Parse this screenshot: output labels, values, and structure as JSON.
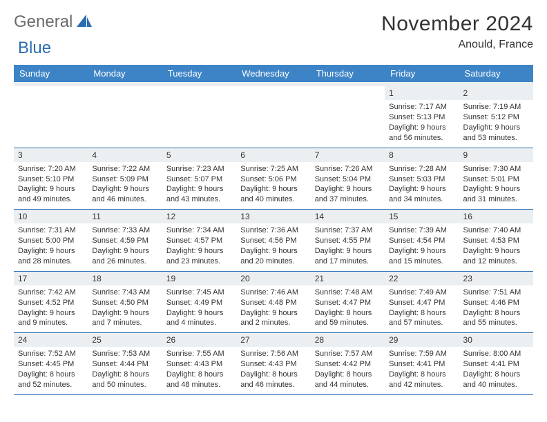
{
  "logo": {
    "word1": "General",
    "word2": "Blue",
    "sail_color": "#2a6db0"
  },
  "header": {
    "title": "November 2024",
    "location": "Anould, France"
  },
  "colors": {
    "header_bg": "#3d84c6",
    "header_text": "#ffffff",
    "row_divider": "#2a6db0",
    "daynum_bg": "#eceff1",
    "text": "#333333",
    "page_bg": "#ffffff"
  },
  "day_names": [
    "Sunday",
    "Monday",
    "Tuesday",
    "Wednesday",
    "Thursday",
    "Friday",
    "Saturday"
  ],
  "weeks": [
    [
      null,
      null,
      null,
      null,
      null,
      {
        "n": "1",
        "sr": "Sunrise: 7:17 AM",
        "ss": "Sunset: 5:13 PM",
        "d1": "Daylight: 9 hours",
        "d2": "and 56 minutes."
      },
      {
        "n": "2",
        "sr": "Sunrise: 7:19 AM",
        "ss": "Sunset: 5:12 PM",
        "d1": "Daylight: 9 hours",
        "d2": "and 53 minutes."
      }
    ],
    [
      {
        "n": "3",
        "sr": "Sunrise: 7:20 AM",
        "ss": "Sunset: 5:10 PM",
        "d1": "Daylight: 9 hours",
        "d2": "and 49 minutes."
      },
      {
        "n": "4",
        "sr": "Sunrise: 7:22 AM",
        "ss": "Sunset: 5:09 PM",
        "d1": "Daylight: 9 hours",
        "d2": "and 46 minutes."
      },
      {
        "n": "5",
        "sr": "Sunrise: 7:23 AM",
        "ss": "Sunset: 5:07 PM",
        "d1": "Daylight: 9 hours",
        "d2": "and 43 minutes."
      },
      {
        "n": "6",
        "sr": "Sunrise: 7:25 AM",
        "ss": "Sunset: 5:06 PM",
        "d1": "Daylight: 9 hours",
        "d2": "and 40 minutes."
      },
      {
        "n": "7",
        "sr": "Sunrise: 7:26 AM",
        "ss": "Sunset: 5:04 PM",
        "d1": "Daylight: 9 hours",
        "d2": "and 37 minutes."
      },
      {
        "n": "8",
        "sr": "Sunrise: 7:28 AM",
        "ss": "Sunset: 5:03 PM",
        "d1": "Daylight: 9 hours",
        "d2": "and 34 minutes."
      },
      {
        "n": "9",
        "sr": "Sunrise: 7:30 AM",
        "ss": "Sunset: 5:01 PM",
        "d1": "Daylight: 9 hours",
        "d2": "and 31 minutes."
      }
    ],
    [
      {
        "n": "10",
        "sr": "Sunrise: 7:31 AM",
        "ss": "Sunset: 5:00 PM",
        "d1": "Daylight: 9 hours",
        "d2": "and 28 minutes."
      },
      {
        "n": "11",
        "sr": "Sunrise: 7:33 AM",
        "ss": "Sunset: 4:59 PM",
        "d1": "Daylight: 9 hours",
        "d2": "and 26 minutes."
      },
      {
        "n": "12",
        "sr": "Sunrise: 7:34 AM",
        "ss": "Sunset: 4:57 PM",
        "d1": "Daylight: 9 hours",
        "d2": "and 23 minutes."
      },
      {
        "n": "13",
        "sr": "Sunrise: 7:36 AM",
        "ss": "Sunset: 4:56 PM",
        "d1": "Daylight: 9 hours",
        "d2": "and 20 minutes."
      },
      {
        "n": "14",
        "sr": "Sunrise: 7:37 AM",
        "ss": "Sunset: 4:55 PM",
        "d1": "Daylight: 9 hours",
        "d2": "and 17 minutes."
      },
      {
        "n": "15",
        "sr": "Sunrise: 7:39 AM",
        "ss": "Sunset: 4:54 PM",
        "d1": "Daylight: 9 hours",
        "d2": "and 15 minutes."
      },
      {
        "n": "16",
        "sr": "Sunrise: 7:40 AM",
        "ss": "Sunset: 4:53 PM",
        "d1": "Daylight: 9 hours",
        "d2": "and 12 minutes."
      }
    ],
    [
      {
        "n": "17",
        "sr": "Sunrise: 7:42 AM",
        "ss": "Sunset: 4:52 PM",
        "d1": "Daylight: 9 hours",
        "d2": "and 9 minutes."
      },
      {
        "n": "18",
        "sr": "Sunrise: 7:43 AM",
        "ss": "Sunset: 4:50 PM",
        "d1": "Daylight: 9 hours",
        "d2": "and 7 minutes."
      },
      {
        "n": "19",
        "sr": "Sunrise: 7:45 AM",
        "ss": "Sunset: 4:49 PM",
        "d1": "Daylight: 9 hours",
        "d2": "and 4 minutes."
      },
      {
        "n": "20",
        "sr": "Sunrise: 7:46 AM",
        "ss": "Sunset: 4:48 PM",
        "d1": "Daylight: 9 hours",
        "d2": "and 2 minutes."
      },
      {
        "n": "21",
        "sr": "Sunrise: 7:48 AM",
        "ss": "Sunset: 4:47 PM",
        "d1": "Daylight: 8 hours",
        "d2": "and 59 minutes."
      },
      {
        "n": "22",
        "sr": "Sunrise: 7:49 AM",
        "ss": "Sunset: 4:47 PM",
        "d1": "Daylight: 8 hours",
        "d2": "and 57 minutes."
      },
      {
        "n": "23",
        "sr": "Sunrise: 7:51 AM",
        "ss": "Sunset: 4:46 PM",
        "d1": "Daylight: 8 hours",
        "d2": "and 55 minutes."
      }
    ],
    [
      {
        "n": "24",
        "sr": "Sunrise: 7:52 AM",
        "ss": "Sunset: 4:45 PM",
        "d1": "Daylight: 8 hours",
        "d2": "and 52 minutes."
      },
      {
        "n": "25",
        "sr": "Sunrise: 7:53 AM",
        "ss": "Sunset: 4:44 PM",
        "d1": "Daylight: 8 hours",
        "d2": "and 50 minutes."
      },
      {
        "n": "26",
        "sr": "Sunrise: 7:55 AM",
        "ss": "Sunset: 4:43 PM",
        "d1": "Daylight: 8 hours",
        "d2": "and 48 minutes."
      },
      {
        "n": "27",
        "sr": "Sunrise: 7:56 AM",
        "ss": "Sunset: 4:43 PM",
        "d1": "Daylight: 8 hours",
        "d2": "and 46 minutes."
      },
      {
        "n": "28",
        "sr": "Sunrise: 7:57 AM",
        "ss": "Sunset: 4:42 PM",
        "d1": "Daylight: 8 hours",
        "d2": "and 44 minutes."
      },
      {
        "n": "29",
        "sr": "Sunrise: 7:59 AM",
        "ss": "Sunset: 4:41 PM",
        "d1": "Daylight: 8 hours",
        "d2": "and 42 minutes."
      },
      {
        "n": "30",
        "sr": "Sunrise: 8:00 AM",
        "ss": "Sunset: 4:41 PM",
        "d1": "Daylight: 8 hours",
        "d2": "and 40 minutes."
      }
    ]
  ]
}
